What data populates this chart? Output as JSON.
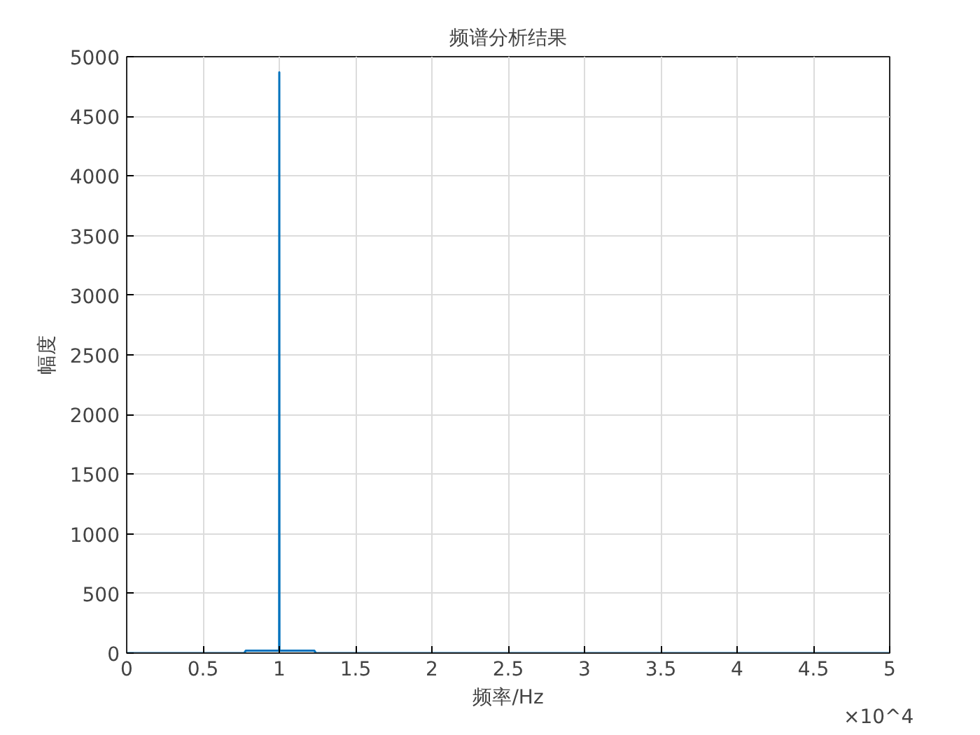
{
  "chart_data": {
    "type": "line",
    "title": "频谱分析结果",
    "xlabel": "频率/Hz",
    "ylabel": "幅度",
    "x": [
      0,
      0.77,
      0.78,
      0.999,
      1,
      1.001,
      1.23,
      1.24,
      5
    ],
    "series": [
      {
        "color": "#0072bd",
        "values": [
          0,
          0,
          20,
          20,
          4870,
          20,
          20,
          0,
          0
        ]
      }
    ],
    "xlim": [
      0,
      5
    ],
    "xticks": [
      0,
      0.5,
      1,
      1.5,
      2,
      2.5,
      3,
      3.5,
      4,
      4.5,
      5
    ],
    "ylim": [
      0,
      5000
    ],
    "yticks": [
      0,
      500,
      1000,
      1500,
      2000,
      2500,
      3000,
      3500,
      4000,
      4500,
      5000
    ],
    "grid": true,
    "annotations": [
      "×10^4"
    ]
  }
}
